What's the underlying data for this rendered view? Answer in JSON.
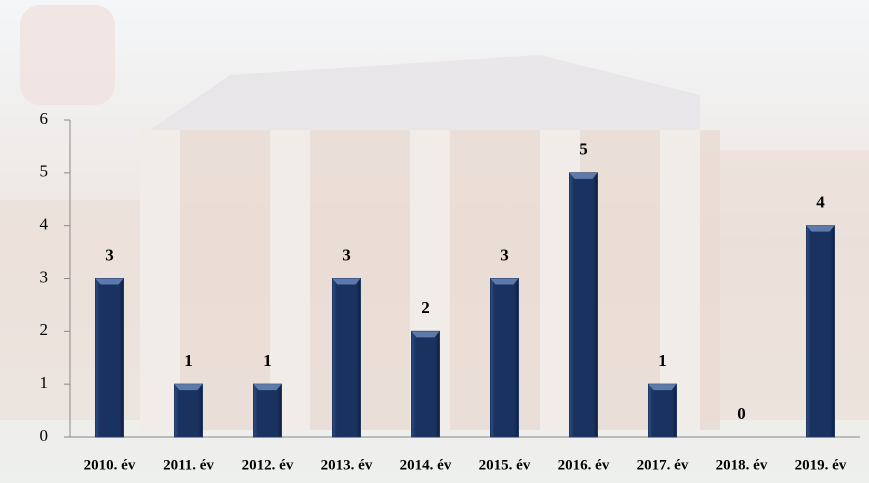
{
  "chart_data": {
    "type": "bar",
    "categories": [
      "2010. év",
      "2011. év",
      "2012. év",
      "2013. év",
      "2014. év",
      "2015. év",
      "2016. év",
      "2017. év",
      "2018. év",
      "2019. év"
    ],
    "values": [
      3,
      1,
      1,
      3,
      2,
      3,
      5,
      1,
      0,
      4
    ],
    "color": "#1f3864",
    "ylim": [
      0,
      6
    ],
    "yticks": [
      0,
      1,
      2,
      3,
      4,
      5,
      6
    ],
    "grid": false
  }
}
